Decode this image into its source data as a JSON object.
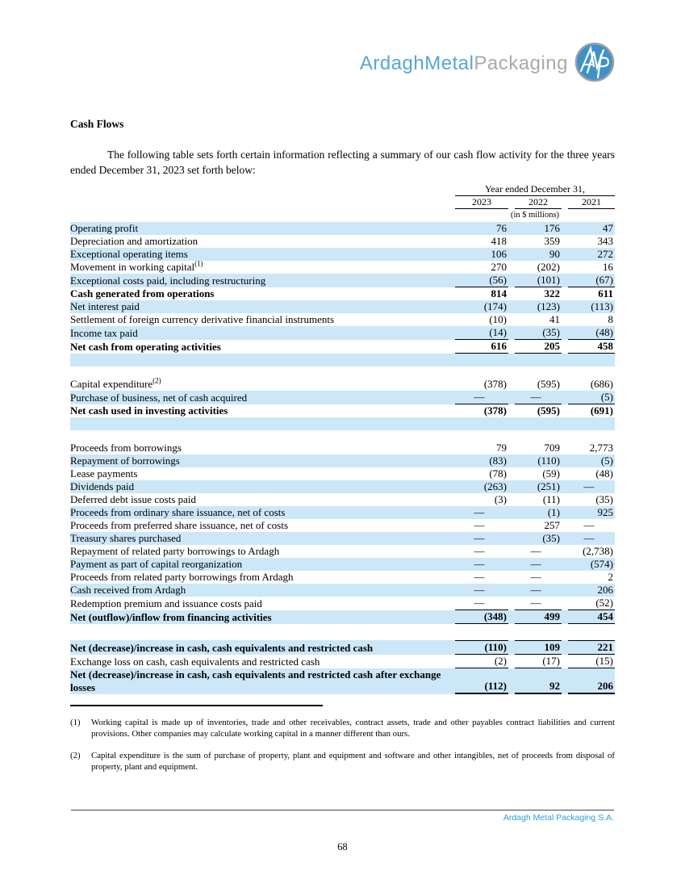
{
  "logo": {
    "part_blue": "ArdaghMetal",
    "part_gray": "Packaging",
    "badge": "AMP"
  },
  "heading": "Cash Flows",
  "intro": "The following table sets forth certain information reflecting a summary of our cash flow activity for the three years ended December 31, 2023 set forth below:",
  "table": {
    "span_header": "Year ended December 31,",
    "col_headers": [
      "2023",
      "2022",
      "2021"
    ],
    "units": "(in $ millions)",
    "rows": [
      {
        "label": "Operating profit",
        "values": [
          "76",
          "176",
          "47"
        ],
        "shaded": true
      },
      {
        "label": "Depreciation and amortization",
        "values": [
          "418",
          "359",
          "343"
        ]
      },
      {
        "label": "Exceptional operating items",
        "values": [
          "106",
          "90",
          "272"
        ],
        "shaded": true
      },
      {
        "label": "Movement in working capital",
        "sup": "(1)",
        "values": [
          "270",
          "(202)",
          "16"
        ]
      },
      {
        "label": "Exceptional costs paid, including restructuring",
        "values": [
          "(56)",
          "(101)",
          "(67)"
        ],
        "shaded": true,
        "ul": true
      },
      {
        "label": "Cash generated from operations",
        "values": [
          "814",
          "322",
          "611"
        ],
        "bold": true
      },
      {
        "label": "Net interest paid",
        "values": [
          "(174)",
          "(123)",
          "(113)"
        ],
        "shaded": true
      },
      {
        "label": "Settlement of foreign currency derivative financial instruments",
        "values": [
          "(10)",
          "41",
          "8"
        ]
      },
      {
        "label": "Income tax paid",
        "values": [
          "(14)",
          "(35)",
          "(48)"
        ],
        "shaded": true,
        "ul": true
      },
      {
        "label": "Net cash from operating activities",
        "values": [
          "616",
          "205",
          "458"
        ],
        "bold": true,
        "ul": true
      },
      {
        "spacer": 16,
        "shaded": true
      },
      {
        "spacer": 14
      },
      {
        "label": "Capital expenditure",
        "sup": "(2)",
        "values": [
          "(378)",
          "(595)",
          "(686)"
        ]
      },
      {
        "label": "Purchase of business, net of cash acquired",
        "values": [
          "—",
          "—",
          "(5)"
        ],
        "shaded": true,
        "ul": true
      },
      {
        "label": "Net cash used in investing activities",
        "values": [
          "(378)",
          "(595)",
          "(691)"
        ],
        "bold": true
      },
      {
        "spacer": 16,
        "shaded": true
      },
      {
        "spacer": 14
      },
      {
        "label": "Proceeds from borrowings",
        "values": [
          "79",
          "709",
          "2,773"
        ]
      },
      {
        "label": "Repayment of borrowings",
        "values": [
          "(83)",
          "(110)",
          "(5)"
        ],
        "shaded": true
      },
      {
        "label": "Lease payments",
        "values": [
          "(78)",
          "(59)",
          "(48)"
        ]
      },
      {
        "label": "Dividends paid",
        "values": [
          "(263)",
          "(251)",
          "—"
        ],
        "shaded": true
      },
      {
        "label": "Deferred debt issue costs paid",
        "values": [
          "(3)",
          "(11)",
          "(35)"
        ]
      },
      {
        "label": "Proceeds from ordinary share issuance, net of costs",
        "values": [
          "—",
          "(1)",
          "925"
        ],
        "shaded": true
      },
      {
        "label": "Proceeds from preferred share issuance, net of costs",
        "values": [
          "—",
          "257",
          "—"
        ]
      },
      {
        "label": "Treasury shares purchased",
        "values": [
          "—",
          "(35)",
          "—"
        ],
        "shaded": true
      },
      {
        "label": "Repayment of related party borrowings to Ardagh",
        "values": [
          "—",
          "—",
          "(2,738)"
        ]
      },
      {
        "label": "Payment as part of capital reorganization",
        "values": [
          "—",
          "—",
          "(574)"
        ],
        "shaded": true
      },
      {
        "label": "Proceeds from related party borrowings from Ardagh",
        "values": [
          "—",
          "—",
          "2"
        ]
      },
      {
        "label": "Cash received from Ardagh",
        "values": [
          "—",
          "—",
          "206"
        ],
        "shaded": true
      },
      {
        "label": "Redemption premium and issuance costs paid",
        "values": [
          "—",
          "—",
          "(52)"
        ],
        "ul": true
      },
      {
        "label": "Net (outflow)/inflow from financing activities",
        "values": [
          "(348)",
          "499",
          "454"
        ],
        "bold": true,
        "shaded": true,
        "ul": true
      },
      {
        "spacer": 20
      },
      {
        "label": "Net (decrease)/increase in cash, cash equivalents and restricted cash",
        "values": [
          "(110)",
          "109",
          "221"
        ],
        "bold": true,
        "shaded": true,
        "ol": true,
        "ul": true
      },
      {
        "label": "Exchange loss on cash, cash equivalents and restricted cash",
        "values": [
          "(2)",
          "(17)",
          "(15)"
        ],
        "ul": true
      },
      {
        "label": "Net (decrease)/increase in cash, cash equivalents and restricted cash after exchange losses",
        "values": [
          "(112)",
          "92",
          "206"
        ],
        "bold": true,
        "shaded": true,
        "thick": true
      }
    ]
  },
  "footnotes": [
    {
      "marker": "(1)",
      "text": "Working capital is made up of inventories, trade and other receivables, contract assets, trade and other payables contract liabilities and current provisions. Other companies may calculate working capital in a manner different than ours."
    },
    {
      "marker": "(2)",
      "text": "Capital expenditure is the sum of purchase of property, plant and equipment and software and other intangibles, net of proceeds from disposal of property, plant and equipment."
    }
  ],
  "footer": {
    "company": "Ardagh Metal Packaging S.A.",
    "page_number": "68"
  },
  "colors": {
    "row_shade": "#cce7f8",
    "logo_blue": "#56a6d7",
    "logo_gray": "#a7a9ac",
    "badge_fill": "#3f92c9",
    "footer_blue": "#2d9fd9"
  }
}
